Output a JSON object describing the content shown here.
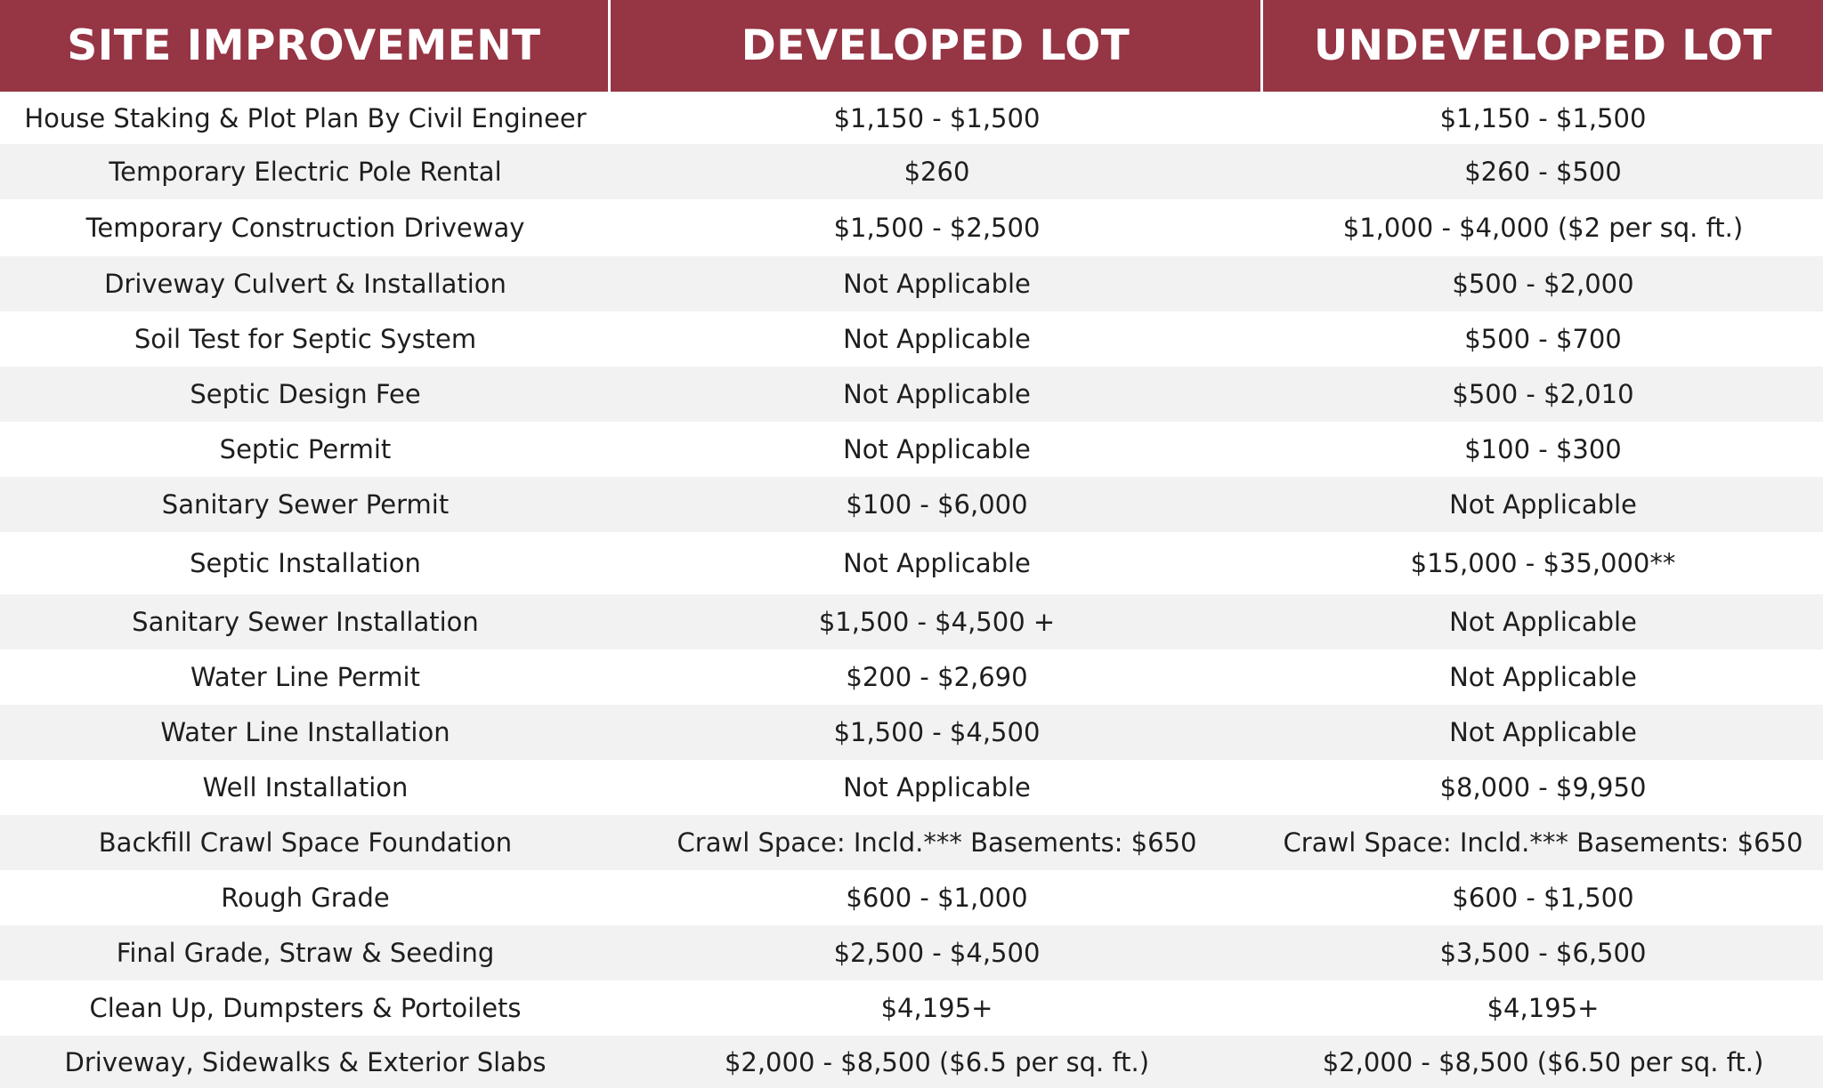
{
  "table": {
    "headers": [
      "SITE IMPROVEMENT",
      "DEVELOPED LOT",
      "UNDEVELOPED LOT"
    ],
    "rows": [
      [
        "House Staking & Plot Plan By Civil Engineer",
        "$1,150 - $1,500",
        "$1,150 - $1,500"
      ],
      [
        "Temporary Electric Pole Rental",
        "$260",
        "$260 - $500"
      ],
      [
        "Temporary Construction Driveway",
        "$1,500 - $2,500",
        "$1,000 - $4,000 ($2 per sq. ft.)"
      ],
      [
        "Driveway Culvert & Installation",
        "Not Applicable",
        "$500 - $2,000"
      ],
      [
        "Soil Test for Septic System",
        "Not Applicable",
        "$500 - $700"
      ],
      [
        "Septic Design Fee",
        "Not Applicable",
        "$500 - $2,010"
      ],
      [
        "Septic Permit",
        "Not Applicable",
        "$100 - $300"
      ],
      [
        "Sanitary Sewer Permit",
        "$100 - $6,000",
        "Not Applicable"
      ],
      [
        "Septic Installation",
        "Not Applicable",
        "$15,000 - $35,000**"
      ],
      [
        "Sanitary Sewer Installation",
        "$1,500 - $4,500 +",
        "Not Applicable"
      ],
      [
        "Water Line Permit",
        "$200 - $2,690",
        "Not Applicable"
      ],
      [
        "Water Line Installation",
        "$1,500 - $4,500",
        "Not Applicable"
      ],
      [
        "Well Installation",
        "Not Applicable",
        "$8,000 - $9,950"
      ],
      [
        "Backfill Crawl Space Foundation",
        "Crawl Space: Incld.*** Basements: $650",
        "Crawl Space: Incld.*** Basements: $650"
      ],
      [
        "Rough Grade",
        "$600 - $1,000",
        "$600 - $1,500"
      ],
      [
        "Final Grade, Straw & Seeding",
        "$2,500 - $4,500",
        "$3,500 - $6,500"
      ],
      [
        "Clean Up, Dumpsters & Portoilets",
        "$4,195+",
        "$4,195+"
      ],
      [
        "Driveway, Sidewalks & Exterior Slabs",
        "$2,000 - $8,500 ($6.5 per sq. ft.)",
        "$2,000 - $8,500 ($6.50 per sq. ft.)"
      ]
    ]
  },
  "colors": {
    "header_bg": "#963544",
    "header_text": "#ffffff",
    "row_alt_bg": "#f2f2f2",
    "row_bg": "#ffffff",
    "body_text": "#1e1e1e"
  }
}
